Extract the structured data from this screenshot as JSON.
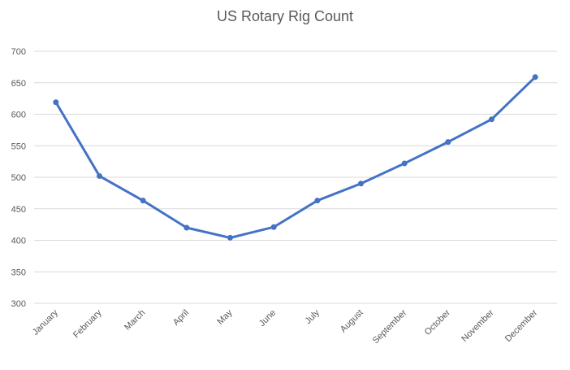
{
  "chart_data": {
    "type": "line",
    "title": "US Rotary Rig Count",
    "xlabel": "",
    "ylabel": "",
    "categories": [
      "January",
      "February",
      "March",
      "April",
      "May",
      "June",
      "July",
      "August",
      "September",
      "October",
      "November",
      "December"
    ],
    "series": [
      {
        "values": [
          619,
          502,
          463,
          420,
          404,
          421,
          463,
          490,
          522,
          556,
          592,
          659
        ],
        "color": "#4472c4"
      }
    ],
    "ylim": [
      300,
      700
    ],
    "yticks": [
      300,
      350,
      400,
      450,
      500,
      550,
      600,
      650,
      700
    ],
    "grid": true,
    "legend": "none"
  }
}
